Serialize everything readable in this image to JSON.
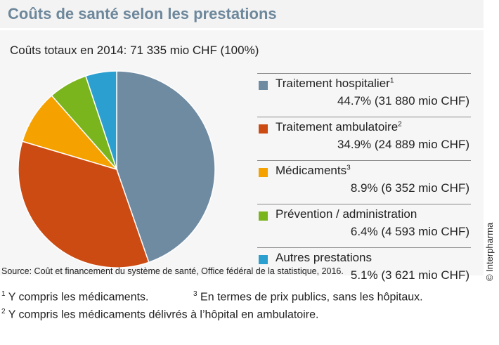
{
  "title": "Coûts de santé selon les prestations",
  "subtitle": "Coûts totaux en 2014: 71 335 mio CHF (100%)",
  "copyright": "© Interpharma",
  "source": "Source: Coût et financement du système de santé, Office fédéral de la statistique, 2016.",
  "footnotes": [
    {
      "mark": "1",
      "text": "Y compris les médicaments."
    },
    {
      "mark": "3",
      "text": "En termes de prix publics, sans les hôpitaux."
    },
    {
      "mark": "2",
      "text": "Y compris les médicaments délivrés à l’hôpital en ambulatoire."
    }
  ],
  "chart_data": {
    "type": "pie",
    "title": "Coûts de santé selon les prestations",
    "start": "top",
    "direction": "clockwise",
    "slices": [
      {
        "label": "Traitement hospitalier",
        "sup": "1",
        "percent": 44.7,
        "value": 31880,
        "value_text": "44.7% (31 880 mio CHF)",
        "color": "#6f8ba2"
      },
      {
        "label": "Traitement ambulatoire",
        "sup": "2",
        "percent": 34.9,
        "value": 24889,
        "value_text": "34.9% (24 889 mio CHF)",
        "color": "#cc4b12"
      },
      {
        "label": "Médicaments",
        "sup": "3",
        "percent": 8.9,
        "value": 6352,
        "value_text": "8.9% (6 352 mio CHF)",
        "color": "#f5a100"
      },
      {
        "label": "Prévention / administration",
        "sup": "",
        "percent": 6.4,
        "value": 4593,
        "value_text": "6.4% (4 593 mio CHF)",
        "color": "#7ab51d"
      },
      {
        "label": "Autres prestations",
        "sup": "",
        "percent": 5.1,
        "value": 3621,
        "value_text": "5.1% (3 621 mio CHF)",
        "color": "#2b9fd0"
      }
    ],
    "legend": "right"
  }
}
